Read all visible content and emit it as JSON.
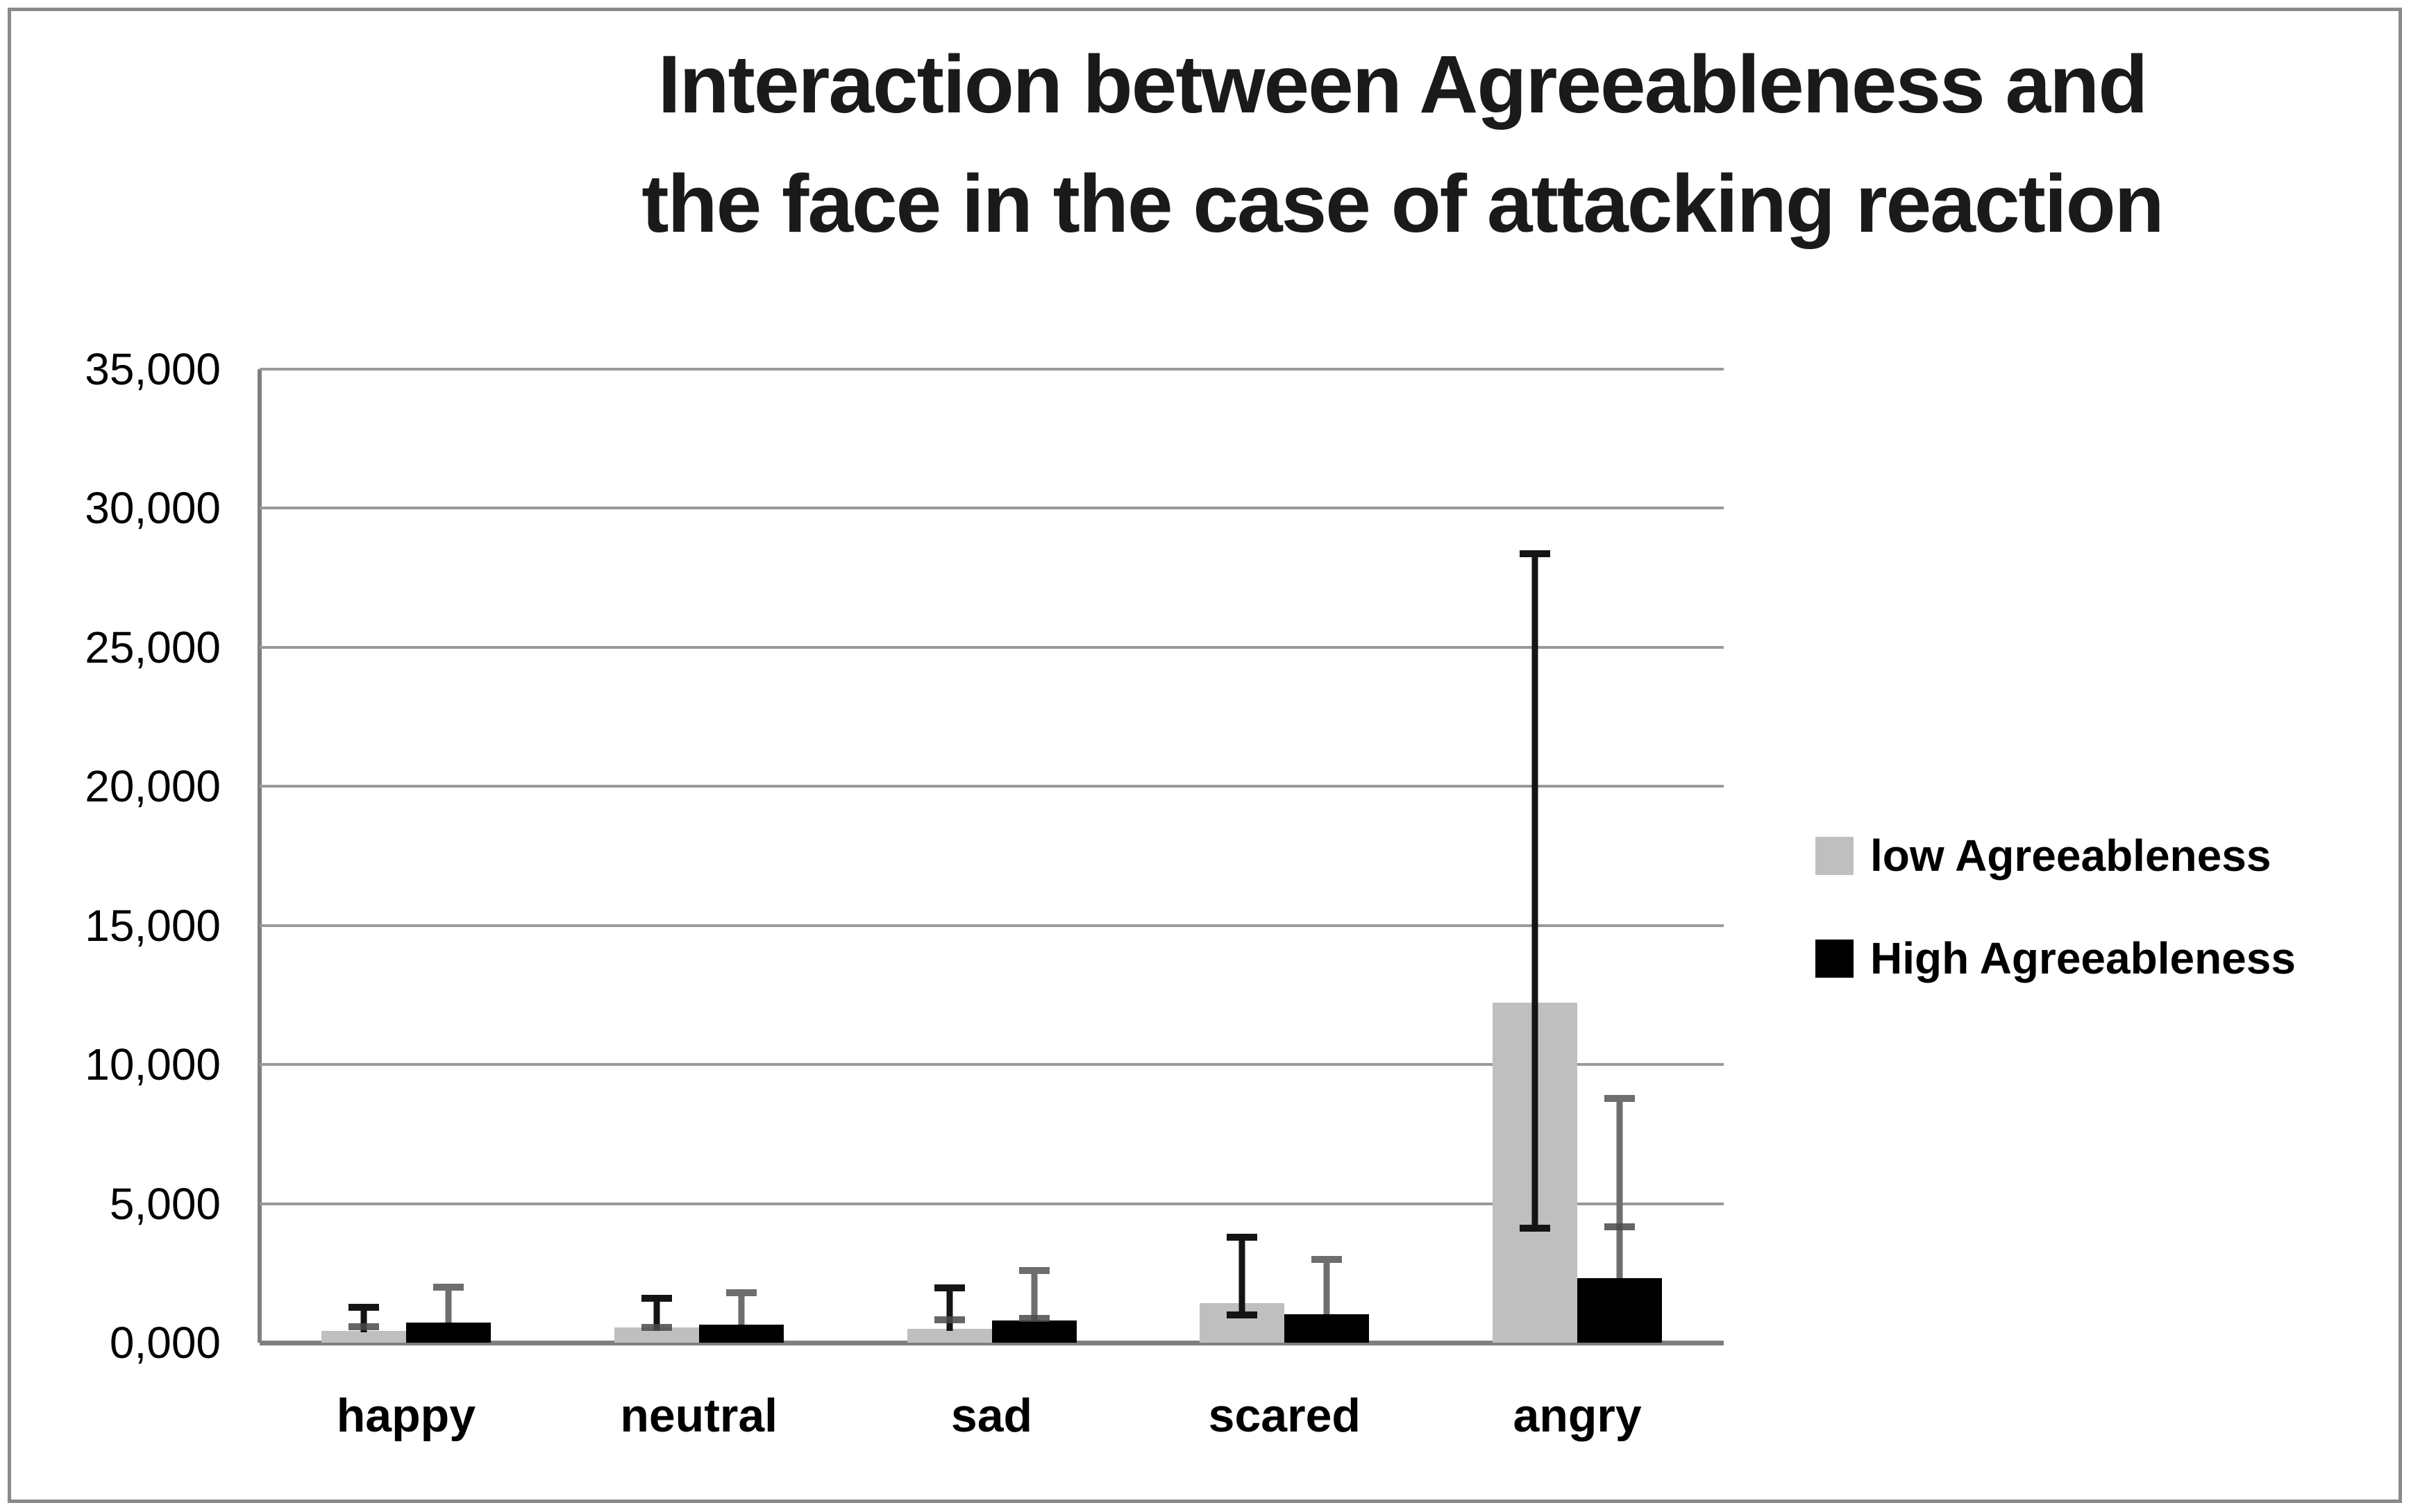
{
  "title": {
    "line1": "Interaction between Agreeableness and",
    "line2": "the face in the case of attacking reaction"
  },
  "legend": {
    "items": [
      {
        "label": "low Agreeableness",
        "color": "#BFBFBF"
      },
      {
        "label": "High Agreeableness",
        "color": "#000000"
      }
    ]
  },
  "colors": {
    "gridline": "#999999",
    "axis": "#7F7F7F",
    "frame": "#8A8A8A",
    "mid_cap": "#4A4A4A"
  },
  "chart_data": {
    "type": "bar",
    "title": "Interaction between Agreeableness and the face in the case of attacking reaction",
    "categories": [
      "happy",
      "neutral",
      "sad",
      "scared",
      "angry"
    ],
    "xlabel": "",
    "ylabel": "",
    "ylim": [
      0,
      35000
    ],
    "grid": true,
    "legend_position": "right",
    "y_axis": {
      "min": 0,
      "max": 35000,
      "tick_interval": 5000,
      "tick_labels_top_to_bottom": [
        "35,000",
        "30,000",
        "25,000",
        "20,000",
        "15,000",
        "10,000",
        "5,000",
        "0,000"
      ]
    },
    "series": [
      {
        "name": "low Agreeableness",
        "color": "#BFBFBF",
        "error_color": "#141414",
        "values": [
          430,
          540,
          505,
          1420,
          12230
        ],
        "error_bars": [
          {
            "line_low": 370,
            "line_high": 1270,
            "caps": [
              1270,
              585
            ]
          },
          {
            "line_low": 420,
            "line_high": 1595,
            "caps": [
              1595,
              540
            ]
          },
          {
            "line_low": 435,
            "line_high": 1960,
            "caps": [
              1960,
              815
            ]
          },
          {
            "line_low": 1000,
            "line_high": 3790,
            "caps": [
              3790,
              1000
            ]
          },
          {
            "line_low": 4115,
            "line_high": 28370,
            "caps": [
              28370,
              4115
            ]
          }
        ]
      },
      {
        "name": "High Agreeableness",
        "color": "#000000",
        "error_color": "#6E6E6E",
        "values": [
          725,
          640,
          795,
          1035,
          2330
        ],
        "error_bars": [
          {
            "line_low": 725,
            "line_high": 1995,
            "caps": [
              1995
            ]
          },
          {
            "line_low": 640,
            "line_high": 1805,
            "caps": [
              1805
            ]
          },
          {
            "line_low": 795,
            "line_high": 2590,
            "caps": [
              2590,
              875
            ]
          },
          {
            "line_low": 1035,
            "line_high": 3000,
            "caps": [
              3000
            ]
          },
          {
            "line_low": 2330,
            "line_high": 8790,
            "caps": [
              8790,
              4160
            ]
          }
        ]
      }
    ]
  }
}
